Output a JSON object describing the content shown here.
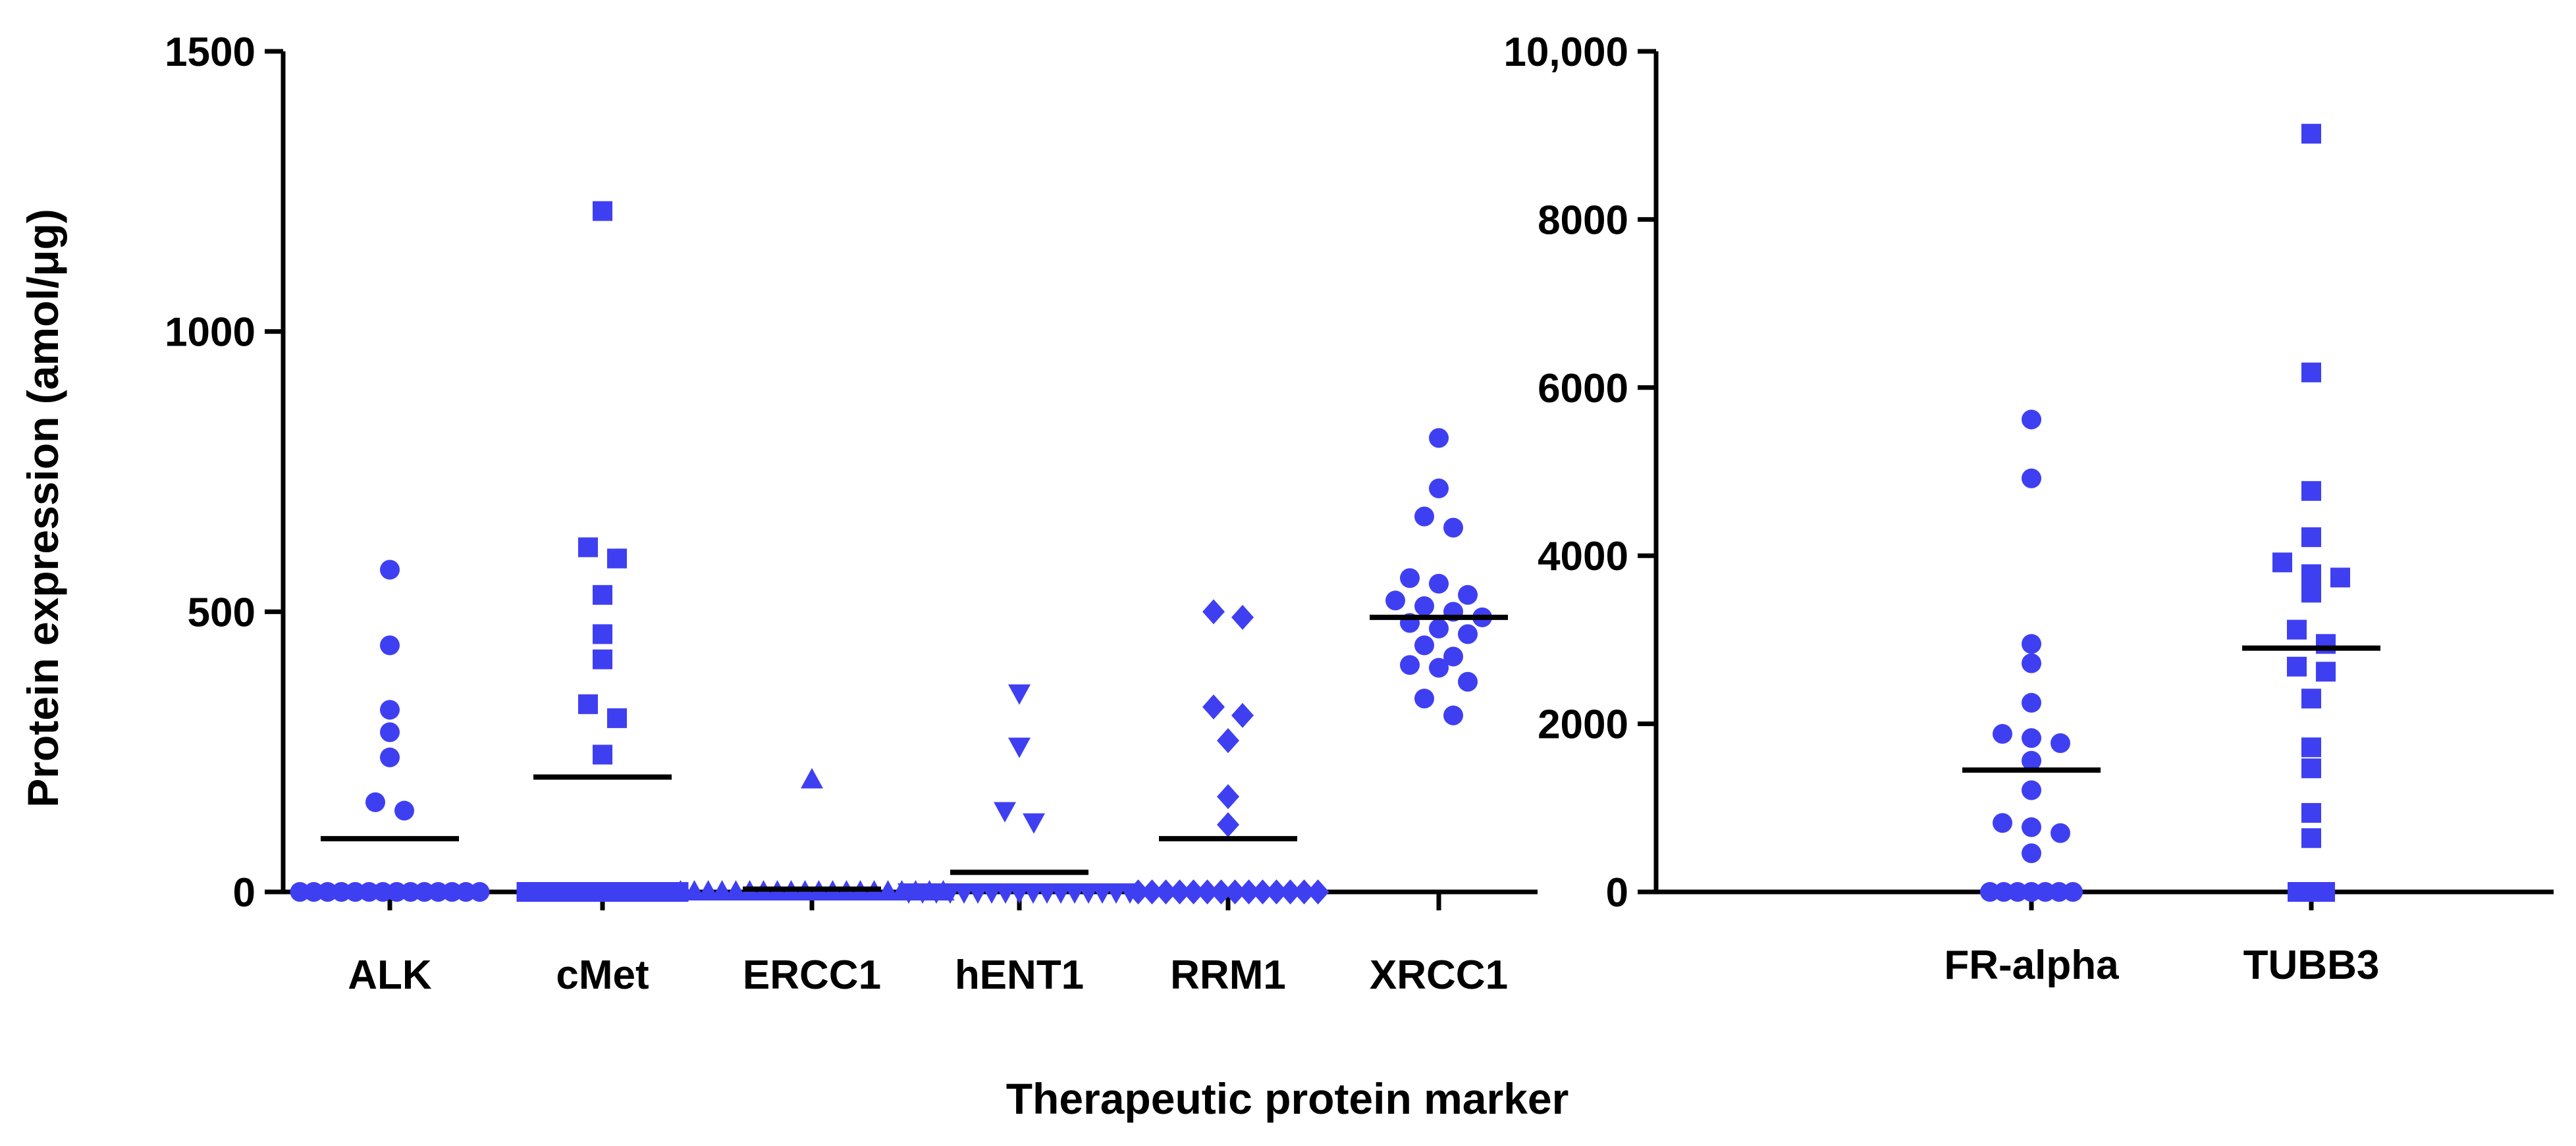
{
  "marker_color": "#3f3ff2",
  "xlabel": "Therapeutic protein marker",
  "ylabel": "Protein expression (amol/μg)",
  "chart_data": [
    {
      "type": "scatter",
      "ylim": [
        0,
        1500
      ],
      "yticks": [
        "0",
        "500",
        "1000",
        "1500"
      ],
      "ytick_values": [
        0,
        500,
        1000,
        1500
      ],
      "categories": [
        "ALK",
        "cMet",
        "ERCC1",
        "hENT1",
        "RRM1",
        "XRCC1"
      ],
      "series": [
        {
          "category": "ALK",
          "marker": "circle",
          "mean": 95,
          "values": [
            575,
            440,
            325,
            285,
            240,
            160,
            145,
            0,
            0,
            0,
            0,
            0,
            0,
            0,
            0,
            0,
            0,
            0,
            0,
            0,
            0
          ]
        },
        {
          "category": "cMet",
          "marker": "square",
          "mean": 205,
          "values": [
            1215,
            615,
            595,
            530,
            460,
            415,
            335,
            310,
            245,
            0,
            0,
            0,
            0,
            0,
            0,
            0,
            0,
            0,
            0,
            0,
            0
          ]
        },
        {
          "category": "ERCC1",
          "marker": "triangle-up",
          "mean": 5,
          "values": [
            200,
            0,
            0,
            0,
            0,
            0,
            0,
            0,
            0,
            0,
            0,
            0,
            0,
            0,
            0,
            0,
            0,
            0,
            0,
            0,
            0
          ]
        },
        {
          "category": "hENT1",
          "marker": "triangle-down",
          "mean": 35,
          "values": [
            355,
            260,
            145,
            125,
            0,
            0,
            0,
            0,
            0,
            0,
            0,
            0,
            0,
            0,
            0,
            0,
            0,
            0,
            0,
            0,
            0
          ]
        },
        {
          "category": "RRM1",
          "marker": "diamond",
          "mean": 95,
          "values": [
            500,
            490,
            330,
            315,
            270,
            170,
            120,
            0,
            0,
            0,
            0,
            0,
            0,
            0,
            0,
            0,
            0,
            0,
            0,
            0,
            0
          ]
        },
        {
          "category": "XRCC1",
          "marker": "circle",
          "mean": 490,
          "values": [
            810,
            720,
            670,
            650,
            560,
            550,
            530,
            520,
            510,
            500,
            490,
            480,
            470,
            460,
            440,
            420,
            405,
            400,
            375,
            345,
            315
          ]
        }
      ]
    },
    {
      "type": "scatter",
      "ylim": [
        0,
        10000
      ],
      "yticks": [
        "0",
        "2000",
        "4000",
        "6000",
        "8000",
        "10,000"
      ],
      "ytick_values": [
        0,
        2000,
        4000,
        6000,
        8000,
        10000
      ],
      "categories": [
        "FR-alpha",
        "TUBB3"
      ],
      "series": [
        {
          "category": "FR-alpha",
          "marker": "circle",
          "mean": 1450,
          "values": [
            5620,
            4920,
            2950,
            2720,
            2250,
            1880,
            1830,
            1770,
            1560,
            1210,
            820,
            770,
            700,
            460,
            0,
            0,
            0,
            0,
            0,
            0,
            0
          ]
        },
        {
          "category": "TUBB3",
          "marker": "square",
          "mean": 2900,
          "values": [
            9020,
            6180,
            4770,
            4220,
            3920,
            3780,
            3740,
            3560,
            3120,
            2950,
            2680,
            2620,
            2300,
            1720,
            1470,
            940,
            640,
            0,
            0,
            0
          ]
        }
      ]
    }
  ]
}
